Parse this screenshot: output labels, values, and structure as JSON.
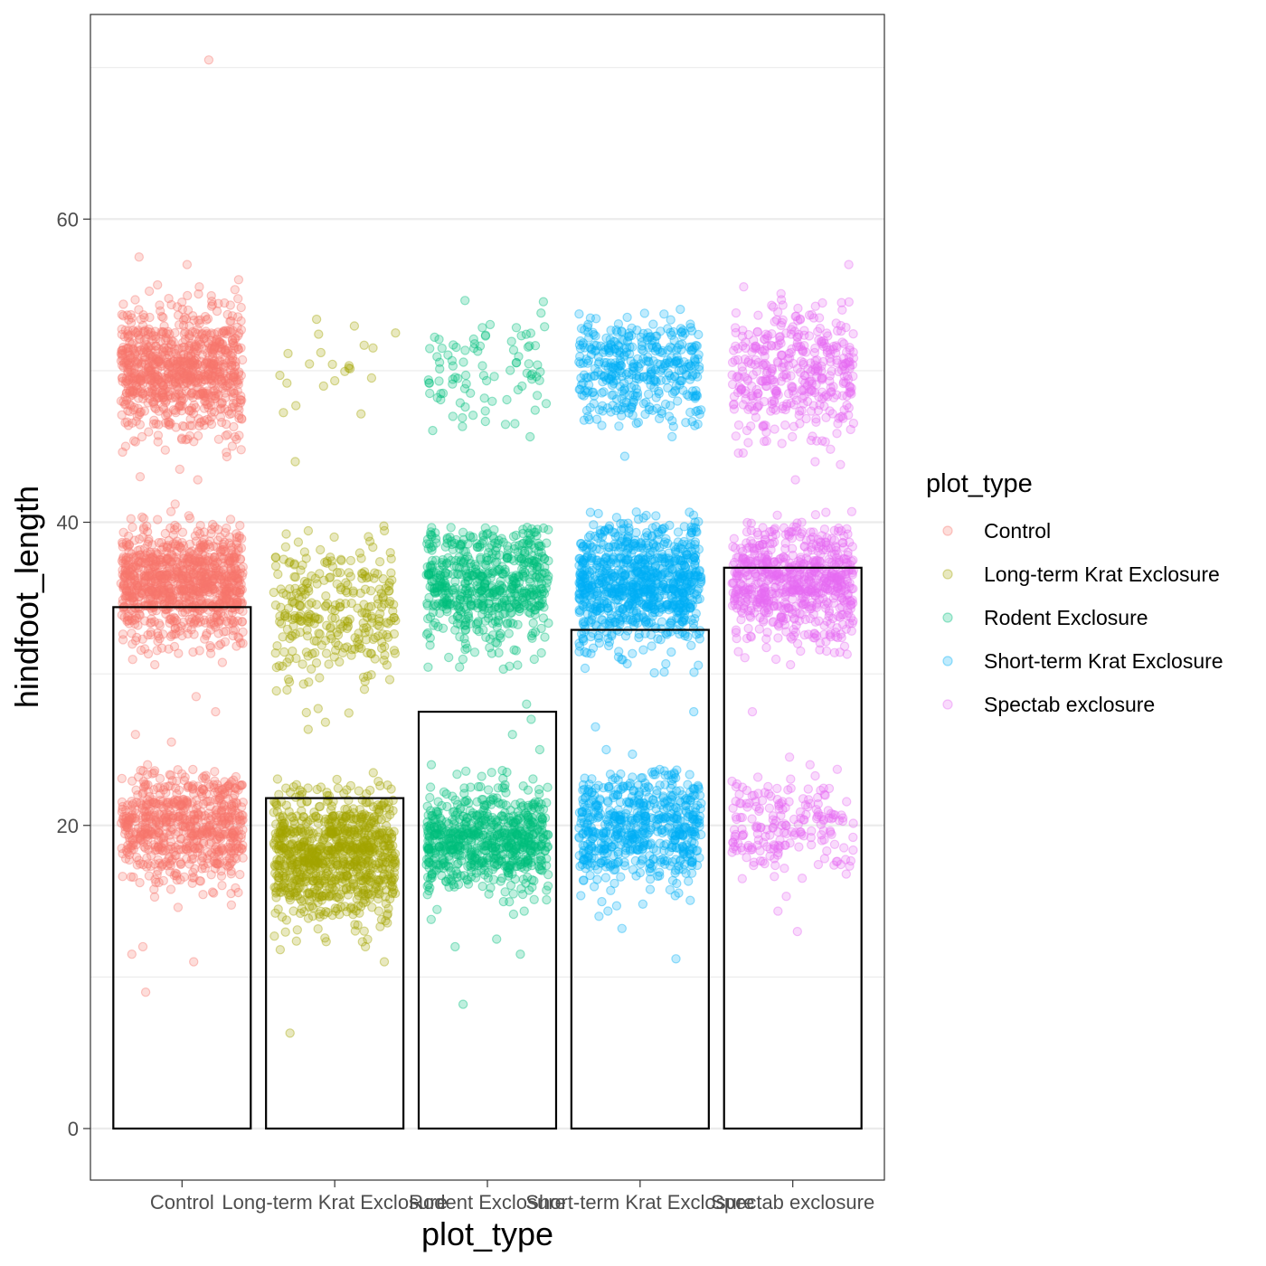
{
  "chart_data": {
    "type": "scatter",
    "subtype": "jittered points over mean bars",
    "xlabel": "plot_type",
    "ylabel": "hindfoot_length",
    "categories": [
      "Control",
      "Long-term Krat Exclosure",
      "Rodent Exclosure",
      "Short-term Krat Exclosure",
      "Spectab exclosure"
    ],
    "bar_values": [
      34.4,
      21.8,
      27.5,
      32.9,
      37.0
    ],
    "ylim": [
      -3.4,
      73.5
    ],
    "yticks": [
      0,
      20,
      40,
      60
    ],
    "ytick_labels": [
      "0",
      "20",
      "40",
      "60"
    ],
    "grid": true,
    "legend": {
      "title": "plot_type",
      "position": "right",
      "entries": [
        "Control",
        "Long-term Krat Exclosure",
        "Rodent Exclosure",
        "Short-term Krat Exclosure",
        "Spectab exclosure"
      ]
    },
    "colors": [
      "#F8766D",
      "#A3A500",
      "#00BF7D",
      "#00B0F6",
      "#E76BF3"
    ],
    "point_alpha": 0.25,
    "series": [
      {
        "name": "Control",
        "clusters": [
          {
            "center": 50,
            "min": 45,
            "max": 55.5,
            "count": 900
          },
          {
            "center": 36,
            "min": 30,
            "max": 40,
            "count": 1000
          },
          {
            "center": 20,
            "min": 14,
            "max": 23.5,
            "count": 700
          }
        ],
        "outliers": [
          70.5,
          57.5,
          57.0,
          56.0,
          43.5,
          43.0,
          42.8,
          41.2,
          28.5,
          27.5,
          26.0,
          25.5,
          24.0,
          12.0,
          11.5,
          11.0,
          9.0
        ]
      },
      {
        "name": "Long-term Krat Exclosure",
        "clusters": [
          {
            "center": 50,
            "min": 45.5,
            "max": 54,
            "count": 22
          },
          {
            "center": 34,
            "min": 27,
            "max": 40.3,
            "count": 300
          },
          {
            "center": 18,
            "min": 13,
            "max": 23.5,
            "count": 900
          }
        ],
        "outliers": [
          44.0,
          12.0,
          11.8,
          11.0,
          6.3
        ]
      },
      {
        "name": "Rodent Exclosure",
        "clusters": [
          {
            "center": 50,
            "min": 45,
            "max": 54.5,
            "count": 90
          },
          {
            "center": 36,
            "min": 29,
            "max": 39.3,
            "count": 600
          },
          {
            "center": 19,
            "min": 14,
            "max": 23,
            "count": 700
          }
        ],
        "outliers": [
          28.0,
          27.0,
          26.0,
          25.0,
          24.0,
          12.5,
          12.0,
          11.5,
          8.2
        ]
      },
      {
        "name": "Short-term Krat Exclosure",
        "clusters": [
          {
            "center": 50,
            "min": 45,
            "max": 54.5,
            "count": 400
          },
          {
            "center": 36,
            "min": 29,
            "max": 40.2,
            "count": 900
          },
          {
            "center": 20,
            "min": 14,
            "max": 23.5,
            "count": 600
          }
        ],
        "outliers": [
          27.5,
          26.5,
          25.0,
          24.7,
          14.0,
          13.2,
          11.2
        ]
      },
      {
        "name": "Spectab exclosure",
        "clusters": [
          {
            "center": 50,
            "min": 44,
            "max": 55.5,
            "count": 400
          },
          {
            "center": 36,
            "min": 30,
            "max": 40,
            "count": 700
          },
          {
            "center": 20,
            "min": 14,
            "max": 23.5,
            "count": 200
          }
        ],
        "outliers": [
          57.0,
          43.8,
          42.8,
          27.5,
          24.5,
          24.0,
          13.0
        ]
      }
    ]
  }
}
